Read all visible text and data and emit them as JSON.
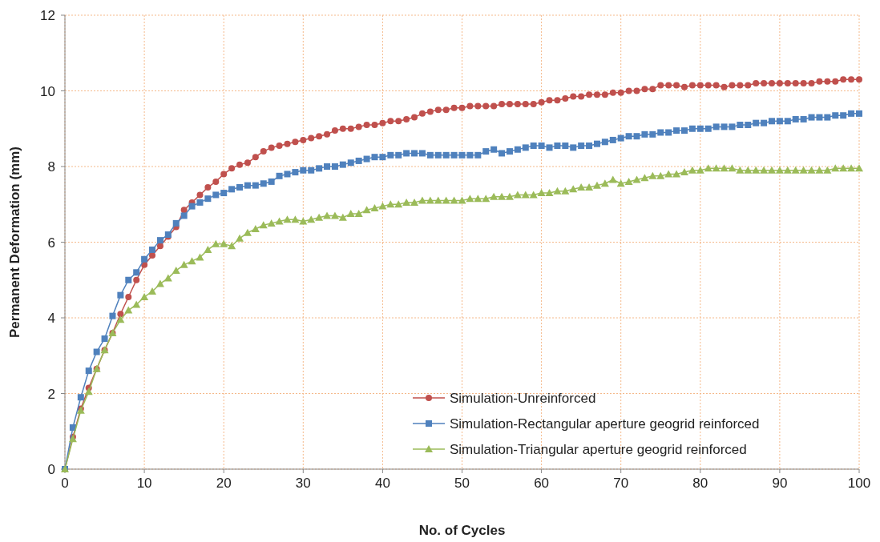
{
  "chart_data": {
    "type": "line",
    "xlabel": "No. of Cycles",
    "ylabel": "Permanent Deformation (mm)",
    "x": [
      0,
      1,
      2,
      3,
      4,
      5,
      6,
      7,
      8,
      9,
      10,
      11,
      12,
      13,
      14,
      15,
      16,
      17,
      18,
      19,
      20,
      21,
      22,
      23,
      24,
      25,
      26,
      27,
      28,
      29,
      30,
      31,
      32,
      33,
      34,
      35,
      36,
      37,
      38,
      39,
      40,
      41,
      42,
      43,
      44,
      45,
      46,
      47,
      48,
      49,
      50,
      51,
      52,
      53,
      54,
      55,
      56,
      57,
      58,
      59,
      60,
      61,
      62,
      63,
      64,
      65,
      66,
      67,
      68,
      69,
      70,
      71,
      72,
      73,
      74,
      75,
      76,
      77,
      78,
      79,
      80,
      81,
      82,
      83,
      84,
      85,
      86,
      87,
      88,
      89,
      90,
      91,
      92,
      93,
      94,
      95,
      96,
      97,
      98,
      99,
      100
    ],
    "xlim": [
      0,
      100
    ],
    "xticks": [
      0,
      10,
      20,
      30,
      40,
      50,
      60,
      70,
      80,
      90,
      100
    ],
    "ylim": [
      0,
      12
    ],
    "yticks": [
      0,
      2,
      4,
      6,
      8,
      10,
      12
    ],
    "grid": true,
    "legend": "bottom right",
    "series": [
      {
        "name": "Simulation-Unreinforced",
        "color": "#c0504d",
        "marker": "circle",
        "values": [
          0,
          0.85,
          1.6,
          2.15,
          2.65,
          3.15,
          3.6,
          4.1,
          4.55,
          5.0,
          5.4,
          5.65,
          5.9,
          6.15,
          6.4,
          6.85,
          7.05,
          7.25,
          7.45,
          7.6,
          7.8,
          7.95,
          8.05,
          8.1,
          8.25,
          8.4,
          8.5,
          8.55,
          8.6,
          8.65,
          8.7,
          8.75,
          8.8,
          8.85,
          8.95,
          9.0,
          9.0,
          9.05,
          9.1,
          9.1,
          9.15,
          9.2,
          9.2,
          9.25,
          9.3,
          9.4,
          9.45,
          9.5,
          9.5,
          9.55,
          9.55,
          9.6,
          9.6,
          9.6,
          9.6,
          9.65,
          9.65,
          9.65,
          9.65,
          9.65,
          9.7,
          9.75,
          9.75,
          9.8,
          9.85,
          9.85,
          9.9,
          9.9,
          9.9,
          9.95,
          9.95,
          10.0,
          10.0,
          10.05,
          10.05,
          10.15,
          10.15,
          10.15,
          10.1,
          10.15,
          10.15,
          10.15,
          10.15,
          10.1,
          10.15,
          10.15,
          10.15,
          10.2,
          10.2,
          10.2,
          10.2,
          10.2,
          10.2,
          10.2,
          10.2,
          10.25,
          10.25,
          10.25,
          10.3,
          10.3,
          10.3
        ]
      },
      {
        "name": "Simulation-Rectangular aperture geogrid reinforced",
        "color": "#4f81bd",
        "marker": "square",
        "values": [
          0,
          1.1,
          1.9,
          2.6,
          3.1,
          3.45,
          4.05,
          4.6,
          5.0,
          5.2,
          5.55,
          5.8,
          6.05,
          6.2,
          6.5,
          6.7,
          6.95,
          7.05,
          7.15,
          7.25,
          7.3,
          7.4,
          7.45,
          7.5,
          7.5,
          7.55,
          7.6,
          7.75,
          7.8,
          7.85,
          7.9,
          7.9,
          7.95,
          8.0,
          8.0,
          8.05,
          8.1,
          8.15,
          8.2,
          8.25,
          8.25,
          8.3,
          8.3,
          8.35,
          8.35,
          8.35,
          8.3,
          8.3,
          8.3,
          8.3,
          8.3,
          8.3,
          8.3,
          8.4,
          8.45,
          8.35,
          8.4,
          8.45,
          8.5,
          8.55,
          8.55,
          8.5,
          8.55,
          8.55,
          8.5,
          8.55,
          8.55,
          8.6,
          8.65,
          8.7,
          8.75,
          8.8,
          8.8,
          8.85,
          8.85,
          8.9,
          8.9,
          8.95,
          8.95,
          9.0,
          9.0,
          9.0,
          9.05,
          9.05,
          9.05,
          9.1,
          9.1,
          9.15,
          9.15,
          9.2,
          9.2,
          9.2,
          9.25,
          9.25,
          9.3,
          9.3,
          9.3,
          9.35,
          9.35,
          9.4,
          9.4
        ]
      },
      {
        "name": "Simulation-Triangular aperture geogrid reinforced",
        "color": "#9bbb59",
        "marker": "triangle",
        "values": [
          0,
          0.8,
          1.55,
          2.05,
          2.65,
          3.15,
          3.6,
          3.95,
          4.2,
          4.35,
          4.55,
          4.7,
          4.9,
          5.05,
          5.25,
          5.4,
          5.5,
          5.6,
          5.8,
          5.95,
          5.95,
          5.9,
          6.1,
          6.25,
          6.35,
          6.45,
          6.5,
          6.55,
          6.6,
          6.6,
          6.55,
          6.6,
          6.65,
          6.7,
          6.7,
          6.65,
          6.75,
          6.75,
          6.85,
          6.9,
          6.95,
          7.0,
          7.0,
          7.05,
          7.05,
          7.1,
          7.1,
          7.1,
          7.1,
          7.1,
          7.1,
          7.15,
          7.15,
          7.15,
          7.2,
          7.2,
          7.2,
          7.25,
          7.25,
          7.25,
          7.3,
          7.3,
          7.35,
          7.35,
          7.4,
          7.45,
          7.45,
          7.5,
          7.55,
          7.65,
          7.55,
          7.6,
          7.65,
          7.7,
          7.75,
          7.75,
          7.8,
          7.8,
          7.85,
          7.9,
          7.9,
          7.95,
          7.95,
          7.95,
          7.95,
          7.9,
          7.9,
          7.9,
          7.9,
          7.9,
          7.9,
          7.9,
          7.9,
          7.9,
          7.9,
          7.9,
          7.9,
          7.95,
          7.95,
          7.95,
          7.95
        ]
      }
    ]
  }
}
